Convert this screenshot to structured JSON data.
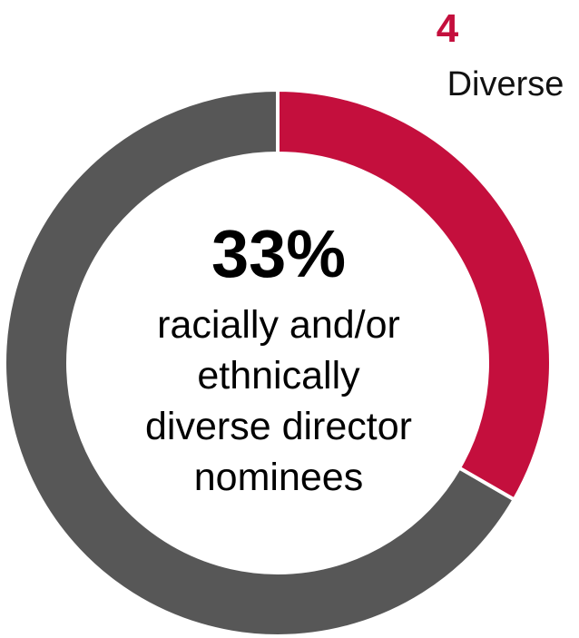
{
  "chart_data": {
    "type": "donut",
    "categories": [
      "Diverse",
      null
    ],
    "values": [
      4,
      8
    ],
    "colors": [
      "#c40f3d",
      "#575757"
    ],
    "center_value_label": "33%",
    "center_text": [
      "racially and/or",
      "ethnically",
      "diverse director",
      "nominees"
    ]
  }
}
